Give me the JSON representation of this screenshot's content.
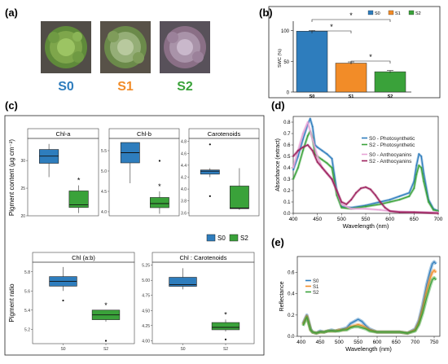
{
  "panels": {
    "a": {
      "label": "(a)",
      "groups": [
        {
          "label": "S0",
          "color": "#2e7dbd"
        },
        {
          "label": "S1",
          "color": "#f28c28"
        },
        {
          "label": "S2",
          "color": "#3aa23a"
        }
      ]
    },
    "b": {
      "label": "(b)"
    },
    "c": {
      "label": "(c)"
    },
    "d": {
      "label": "(d)"
    },
    "e": {
      "label": "(e)"
    }
  },
  "colors": {
    "S0": "#2e7dbd",
    "S1": "#f28c28",
    "S2": "#3aa23a",
    "S0_anth": "#e7a3d6",
    "S2_anth": "#9c1f5c"
  },
  "chart_data": [
    {
      "id": "b",
      "type": "bar",
      "categories": [
        "S0",
        "S1",
        "S2"
      ],
      "values": [
        99,
        47,
        33
      ],
      "errors": [
        1,
        2,
        2
      ],
      "ylabel": "SWC (%)",
      "ylim": [
        0,
        110
      ],
      "yticks": [
        "0",
        "50",
        "100"
      ],
      "legend": [
        "S0",
        "S1",
        "S2"
      ],
      "legend_position": "top-right",
      "significance": [
        "*",
        "*",
        "*"
      ]
    },
    {
      "id": "c-top",
      "type": "box",
      "ylabel": "Pigment content (μg cm⁻²)",
      "legend": [
        "S0",
        "S2"
      ],
      "facets": [
        {
          "title": "Chl-a",
          "yticks": [
            "20",
            "25",
            "30"
          ],
          "ylim": [
            20,
            34
          ],
          "boxes": [
            {
              "group": "S0",
              "min": 27,
              "q1": 29.5,
              "median": 30.8,
              "q3": 32,
              "max": 33
            },
            {
              "group": "S2",
              "min": 20.5,
              "q1": 21.5,
              "median": 22,
              "q3": 24.5,
              "max": 25.5
            }
          ],
          "outliers": [],
          "star": "*"
        },
        {
          "title": "Chl-b",
          "yticks": [
            "4.0",
            "4.5",
            "5.0",
            "5.5"
          ],
          "ylim": [
            3.9,
            5.8
          ],
          "boxes": [
            {
              "group": "S0",
              "min": 4.7,
              "q1": 5.2,
              "median": 5.45,
              "q3": 5.7,
              "max": 5.7
            },
            {
              "group": "S2",
              "min": 3.95,
              "q1": 4.1,
              "median": 4.2,
              "q3": 4.35,
              "max": 4.5
            }
          ],
          "outliers": [
            {
              "group": "S2",
              "value": 5.25
            }
          ],
          "star": "*"
        },
        {
          "title": "Carotenoids",
          "yticks": [
            "3.6",
            "3.8",
            "4.0",
            "4.2",
            "4.4",
            "4.6",
            "4.8"
          ],
          "ylim": [
            3.55,
            4.85
          ],
          "boxes": [
            {
              "group": "S0",
              "min": 4.2,
              "q1": 4.25,
              "median": 4.3,
              "q3": 4.32,
              "max": 4.35
            },
            {
              "group": "S2",
              "min": 3.65,
              "q1": 3.67,
              "median": 3.68,
              "q3": 4.05,
              "max": 4.35
            }
          ],
          "outliers": [
            {
              "group": "S0",
              "value": 4.75
            },
            {
              "group": "S0",
              "value": 3.88
            }
          ],
          "star": ""
        }
      ]
    },
    {
      "id": "c-bottom",
      "type": "box",
      "ylabel": "Pigment ratio",
      "facets": [
        {
          "title": "Chl (a:b)",
          "yticks": [
            "5.2",
            "5.4",
            "5.6",
            "5.8"
          ],
          "ylim": [
            5.05,
            5.9
          ],
          "boxes": [
            {
              "group": "S0",
              "min": 5.6,
              "q1": 5.65,
              "median": 5.7,
              "q3": 5.75,
              "max": 5.85
            },
            {
              "group": "S2",
              "min": 5.28,
              "q1": 5.3,
              "median": 5.35,
              "q3": 5.4,
              "max": 5.4
            }
          ],
          "outliers": [
            {
              "group": "S0",
              "value": 5.5
            },
            {
              "group": "S2",
              "value": 5.08
            }
          ],
          "star": "*"
        },
        {
          "title": "Chl : Carotenoids",
          "yticks": [
            "4.00",
            "4.25",
            "4.50",
            "4.75",
            "5.00",
            "5.25"
          ],
          "ylim": [
            3.95,
            5.3
          ],
          "boxes": [
            {
              "group": "S0",
              "min": 4.85,
              "q1": 4.9,
              "median": 4.93,
              "q3": 5.05,
              "max": 5.2
            },
            {
              "group": "S2",
              "min": 4.15,
              "q1": 4.18,
              "median": 4.22,
              "q3": 4.3,
              "max": 4.35
            }
          ],
          "outliers": [
            {
              "group": "S2",
              "value": 4.02
            }
          ],
          "star": "*"
        }
      ],
      "xticks": [
        "S0",
        "S2"
      ]
    },
    {
      "id": "d",
      "type": "line",
      "xlabel": "Wavelength (nm)",
      "ylabel": "Absorbance (extract)",
      "xlim": [
        400,
        700
      ],
      "ylim": [
        0,
        0.85
      ],
      "xticks": [
        "400",
        "450",
        "500",
        "550",
        "600",
        "650",
        "700"
      ],
      "yticks": [
        "0.0",
        "0.1",
        "0.2",
        "0.3",
        "0.4",
        "0.5",
        "0.6",
        "0.7",
        "0.8"
      ],
      "legend": [
        "S0 - Photosynthetic",
        "S2 - Photosynthetic",
        "S0 - Anthocyanins",
        "S2 - Anthocyanins"
      ],
      "series": [
        {
          "name": "S0 - Photosynthetic",
          "color_key": "S0",
          "x": [
            400,
            410,
            420,
            430,
            435,
            440,
            445,
            450,
            460,
            470,
            480,
            490,
            500,
            520,
            550,
            580,
            600,
            620,
            640,
            650,
            655,
            660,
            665,
            670,
            680,
            690,
            700
          ],
          "y": [
            0.38,
            0.5,
            0.65,
            0.78,
            0.83,
            0.76,
            0.6,
            0.58,
            0.55,
            0.52,
            0.48,
            0.2,
            0.06,
            0.05,
            0.07,
            0.1,
            0.12,
            0.15,
            0.18,
            0.28,
            0.42,
            0.52,
            0.5,
            0.35,
            0.12,
            0.04,
            0.02
          ]
        },
        {
          "name": "S2 - Photosynthetic",
          "color_key": "S2",
          "x": [
            400,
            410,
            420,
            430,
            435,
            440,
            445,
            450,
            460,
            470,
            480,
            490,
            500,
            520,
            550,
            580,
            600,
            620,
            640,
            650,
            655,
            660,
            665,
            670,
            680,
            690,
            700
          ],
          "y": [
            0.3,
            0.4,
            0.55,
            0.68,
            0.72,
            0.66,
            0.52,
            0.5,
            0.47,
            0.44,
            0.4,
            0.16,
            0.05,
            0.04,
            0.06,
            0.08,
            0.1,
            0.12,
            0.15,
            0.22,
            0.34,
            0.42,
            0.4,
            0.28,
            0.1,
            0.03,
            0.02
          ]
        },
        {
          "name": "S0 - Anthocyanins",
          "color_key": "S0_anth",
          "x": [
            400,
            410,
            420,
            430,
            440,
            450,
            460,
            470,
            480,
            490,
            500,
            520,
            550,
            580,
            600,
            650,
            700
          ],
          "y": [
            0.4,
            0.55,
            0.7,
            0.8,
            0.65,
            0.5,
            0.4,
            0.35,
            0.3,
            0.2,
            0.08,
            0.04,
            0.04,
            0.03,
            0.02,
            0.01,
            0.01
          ]
        },
        {
          "name": "S2 - Anthocyanins",
          "color_key": "S2_anth",
          "x": [
            400,
            410,
            420,
            430,
            440,
            450,
            460,
            470,
            480,
            490,
            500,
            510,
            520,
            530,
            540,
            550,
            560,
            570,
            580,
            590,
            600,
            620,
            650,
            700
          ],
          "y": [
            0.5,
            0.55,
            0.58,
            0.6,
            0.55,
            0.45,
            0.4,
            0.35,
            0.3,
            0.2,
            0.1,
            0.08,
            0.12,
            0.18,
            0.22,
            0.23,
            0.21,
            0.16,
            0.1,
            0.05,
            0.02,
            0.01,
            0.01,
            0.0
          ]
        }
      ]
    },
    {
      "id": "e",
      "type": "line",
      "xlabel": "Wavelength (nm)",
      "ylabel": "Reflectance",
      "xlim": [
        390,
        765
      ],
      "ylim": [
        0,
        0.75
      ],
      "xticks": [
        "400",
        "450",
        "500",
        "550",
        "600",
        "650",
        "700",
        "750"
      ],
      "yticks": [
        "0.0",
        "0.2",
        "0.4",
        "0.6"
      ],
      "legend": [
        "S0",
        "S1",
        "S2"
      ],
      "series": [
        {
          "name": "S0",
          "color_key": "S0",
          "x": [
            405,
            410,
            415,
            420,
            425,
            430,
            440,
            450,
            460,
            470,
            480,
            490,
            500,
            510,
            520,
            530,
            540,
            550,
            560,
            570,
            580,
            600,
            620,
            640,
            660,
            680,
            700,
            710,
            720,
            730,
            740,
            745,
            750,
            755
          ],
          "y": [
            0.12,
            0.16,
            0.2,
            0.14,
            0.07,
            0.04,
            0.03,
            0.05,
            0.04,
            0.05,
            0.06,
            0.05,
            0.06,
            0.07,
            0.08,
            0.12,
            0.14,
            0.16,
            0.14,
            0.1,
            0.07,
            0.04,
            0.04,
            0.04,
            0.04,
            0.03,
            0.07,
            0.15,
            0.3,
            0.48,
            0.62,
            0.68,
            0.7,
            0.68
          ]
        },
        {
          "name": "S1",
          "color_key": "S1",
          "x": [
            405,
            410,
            415,
            420,
            425,
            430,
            440,
            450,
            460,
            470,
            480,
            490,
            500,
            510,
            520,
            530,
            540,
            550,
            560,
            570,
            580,
            600,
            620,
            640,
            660,
            680,
            700,
            710,
            720,
            730,
            740,
            745,
            750,
            755
          ],
          "y": [
            0.11,
            0.15,
            0.19,
            0.13,
            0.06,
            0.04,
            0.03,
            0.04,
            0.04,
            0.05,
            0.05,
            0.05,
            0.06,
            0.06,
            0.07,
            0.09,
            0.1,
            0.11,
            0.1,
            0.08,
            0.06,
            0.04,
            0.04,
            0.04,
            0.04,
            0.03,
            0.06,
            0.13,
            0.26,
            0.42,
            0.55,
            0.6,
            0.62,
            0.6
          ]
        },
        {
          "name": "S2",
          "color_key": "S2",
          "x": [
            405,
            410,
            415,
            420,
            425,
            430,
            440,
            450,
            460,
            470,
            480,
            490,
            500,
            510,
            520,
            530,
            540,
            550,
            560,
            570,
            580,
            600,
            620,
            640,
            660,
            680,
            700,
            710,
            720,
            730,
            740,
            745,
            750,
            755
          ],
          "y": [
            0.1,
            0.14,
            0.18,
            0.12,
            0.06,
            0.04,
            0.03,
            0.04,
            0.04,
            0.05,
            0.05,
            0.05,
            0.05,
            0.06,
            0.06,
            0.08,
            0.09,
            0.09,
            0.08,
            0.07,
            0.05,
            0.04,
            0.04,
            0.04,
            0.04,
            0.03,
            0.05,
            0.11,
            0.22,
            0.36,
            0.48,
            0.53,
            0.55,
            0.53
          ]
        }
      ]
    }
  ]
}
